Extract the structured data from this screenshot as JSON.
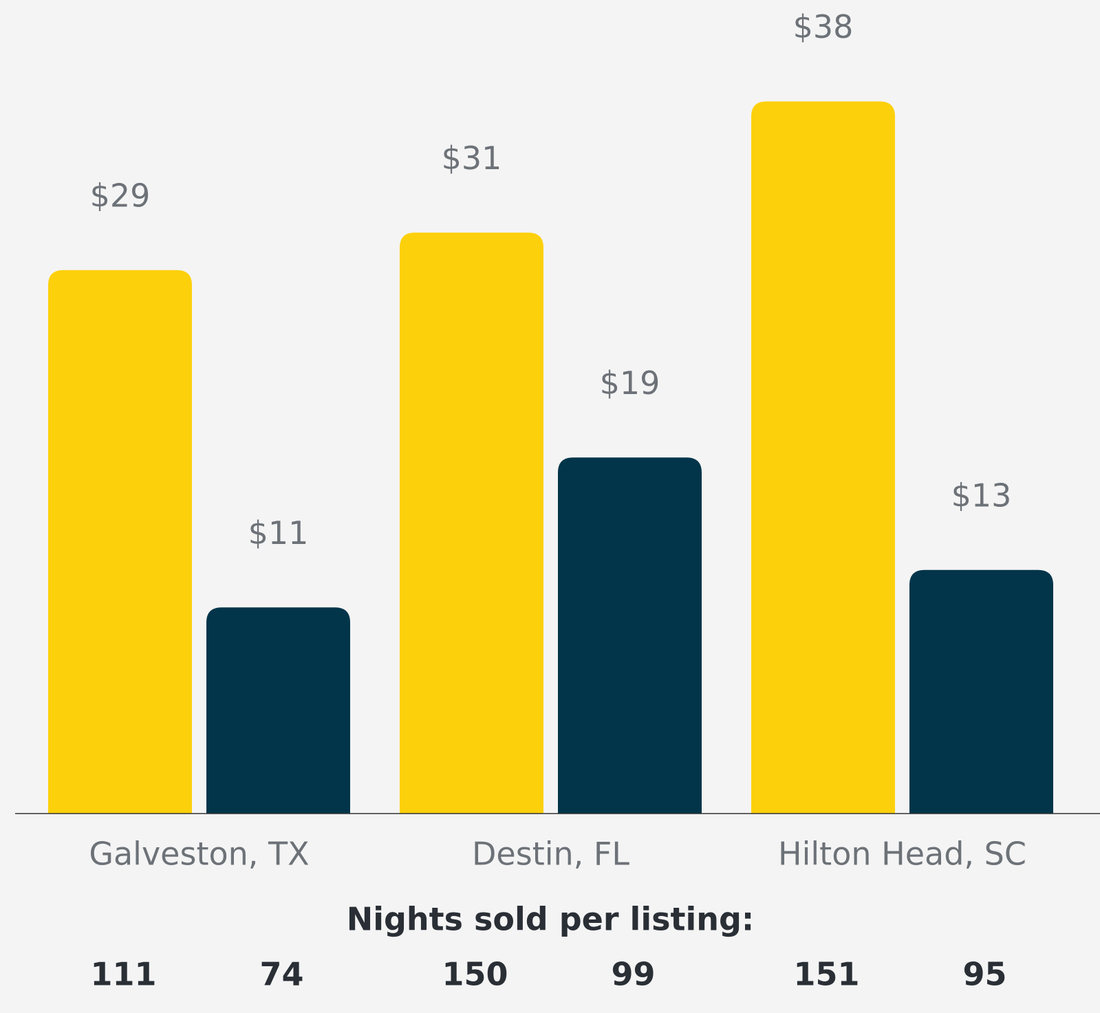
{
  "chart_data": {
    "type": "bar",
    "categories": [
      "Galveston, TX",
      "Destin, FL",
      "Hilton Head, SC"
    ],
    "series": [
      {
        "color": "#fdd00c",
        "values": [
          29,
          31,
          38
        ],
        "value_labels": [
          "$29",
          "$31",
          "$38"
        ],
        "nights": [
          111,
          150,
          151
        ]
      },
      {
        "color": "#02354a",
        "values": [
          11,
          19,
          13
        ],
        "value_labels": [
          "$11",
          "$19",
          "$13"
        ],
        "nights": [
          74,
          99,
          95
        ]
      }
    ],
    "ylim": [
      0,
      40
    ],
    "footer_label": "Nights sold per listing:"
  }
}
